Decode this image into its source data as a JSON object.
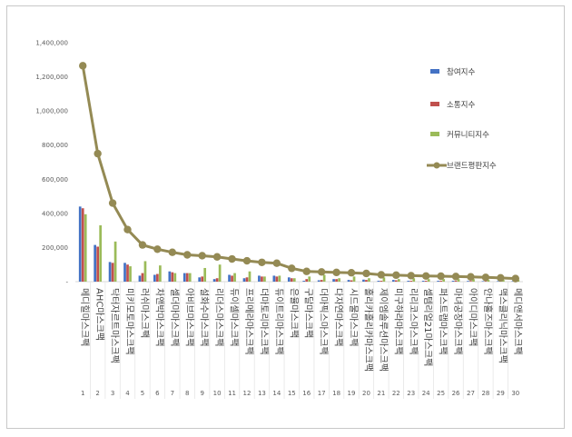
{
  "chart_data": {
    "type": "bar",
    "title": "",
    "xlabel": "",
    "ylabel": "",
    "ylim": [
      0,
      1400000
    ],
    "yticks": [
      "-",
      "200,000",
      "400,000",
      "600,000",
      "800,000",
      "1,000,000",
      "1,200,000",
      "1,400,000"
    ],
    "categories": [
      "메디힐마스크팩",
      "AHC마스크팩",
      "닥터자르트마스크팩",
      "미키모토마스크팩",
      "러쉬마스크팩",
      "차앤박마스크팩",
      "셀더마마스크팩",
      "아비브마스크팩",
      "설화수마스크팩",
      "리더스마스크팩",
      "듀이셀마스크팩",
      "프리메라마스크팩",
      "더마토리마스크팩",
      "듀이트리마스크팩",
      "은율마스크팩",
      "구달마스크팩",
      "더마픽스마스크팩",
      "다자연마스크팩",
      "시드물마스크팩",
      "홀리카홀리카마스크팩",
      "제이엠솔루션마스크팩",
      "미구하라마스크팩",
      "리리코스마스크팩",
      "셀템리얼21마스크팩",
      "퍼스트랩마스크팩",
      "마녀공장마스크팩",
      "아이디마스크팩",
      "안나홀즈마스크팩",
      "맥스클리닉마스크팩",
      "메디앤서마스크팩"
    ],
    "index_labels": [
      "1",
      "2",
      "3",
      "4",
      "5",
      "6",
      "7",
      "8",
      "9",
      "10",
      "11",
      "12",
      "13",
      "14",
      "15",
      "16",
      "17",
      "18",
      "19",
      "20",
      "21",
      "22",
      "23",
      "24",
      "25",
      "26",
      "27",
      "28",
      "29",
      "30"
    ],
    "legend_position": "top-right",
    "series": [
      {
        "name": "참여지수",
        "type": "bar",
        "color": "#4472c4",
        "values": [
          440000,
          215000,
          115000,
          110000,
          35000,
          40000,
          60000,
          50000,
          25000,
          15000,
          40000,
          20000,
          35000,
          35000,
          25000,
          5000,
          8000,
          15000,
          10000,
          12000,
          5000,
          10000,
          5000,
          5000,
          5000,
          5000,
          4000,
          3000,
          3000,
          3000
        ]
      },
      {
        "name": "소통지수",
        "type": "bar",
        "color": "#c0504d",
        "values": [
          430000,
          205000,
          110000,
          100000,
          50000,
          45000,
          55000,
          50000,
          30000,
          20000,
          35000,
          25000,
          30000,
          30000,
          20000,
          15000,
          10000,
          15000,
          8000,
          10000,
          5000,
          8000,
          5000,
          5000,
          5000,
          5000,
          4000,
          3000,
          3000,
          3000
        ]
      },
      {
        "name": "커뮤니티지수",
        "type": "bar",
        "color": "#9bbb59",
        "values": [
          395000,
          330000,
          235000,
          90000,
          120000,
          95000,
          50000,
          50000,
          80000,
          100000,
          50000,
          60000,
          30000,
          35000,
          20000,
          30000,
          40000,
          20000,
          30000,
          20000,
          25000,
          15000,
          20000,
          15000,
          15000,
          15000,
          15000,
          10000,
          10000,
          10000
        ]
      },
      {
        "name": "브랜드평판지수",
        "type": "line",
        "color": "#948a54",
        "values": [
          1265000,
          750000,
          460000,
          305000,
          215000,
          190000,
          172000,
          157000,
          152000,
          145000,
          133000,
          122000,
          113000,
          108000,
          78000,
          60000,
          57000,
          54000,
          52000,
          48000,
          40000,
          38000,
          35000,
          33000,
          32000,
          30000,
          28000,
          25000,
          22000,
          18000
        ]
      }
    ]
  }
}
